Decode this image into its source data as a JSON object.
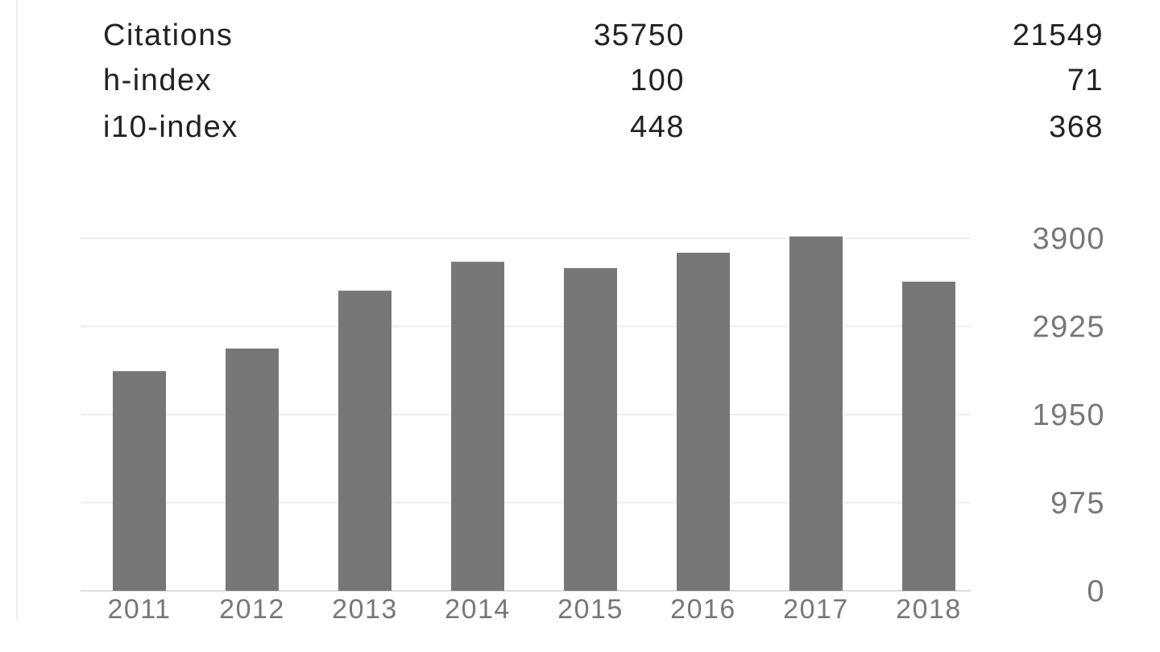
{
  "stats": {
    "rows": [
      {
        "label": "Citations",
        "all": "35750",
        "since": "21549"
      },
      {
        "label": "h-index",
        "all": "100",
        "since": "71"
      },
      {
        "label": "i10-index",
        "all": "448",
        "since": "368"
      }
    ]
  },
  "chart_data": {
    "type": "bar",
    "categories": [
      "2011",
      "2012",
      "2013",
      "2014",
      "2015",
      "2016",
      "2017",
      "2018"
    ],
    "values": [
      2430,
      2680,
      3320,
      3640,
      3570,
      3740,
      3920,
      3420
    ],
    "yticks": [
      "0",
      "975",
      "1950",
      "2925",
      "3900"
    ],
    "ylim": [
      0,
      3900
    ],
    "grid": true,
    "y_axis_side": "right",
    "bar_color": "#777777",
    "grid_color": "#eeeeee",
    "label_color": "#777777"
  }
}
